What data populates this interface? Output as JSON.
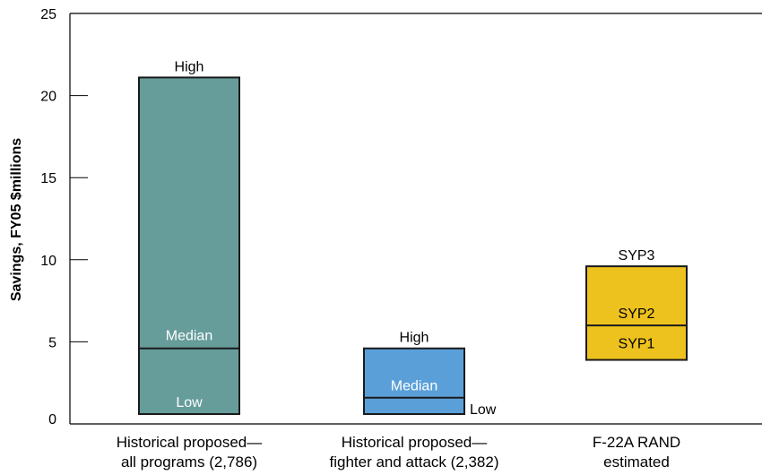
{
  "chart_data": {
    "type": "range_bar",
    "ylabel": "Savings, FY05 $millions",
    "ylim": [
      0,
      25
    ],
    "yticks": [
      0,
      5,
      10,
      15,
      20,
      25
    ],
    "grid": false,
    "categories": [
      [
        "Historical proposed—",
        "all programs (2,786)"
      ],
      [
        "Historical proposed—",
        "fighter and attack (2,382)"
      ],
      [
        "F-22A RAND",
        "estimated"
      ]
    ],
    "bars": [
      {
        "low": 0.6,
        "mid": 4.6,
        "high": 21.1,
        "color": "#669c9a",
        "labels": {
          "high": "High",
          "mid": "Median",
          "low": "Low"
        }
      },
      {
        "low": 0.6,
        "mid": 1.6,
        "high": 4.6,
        "color": "#5a9fd8",
        "labels": {
          "high": "High",
          "mid": "Median",
          "low": "Low"
        }
      },
      {
        "low": 3.9,
        "mid": 6.0,
        "high": 9.6,
        "color": "#eec21e",
        "labels": {
          "high": "SYP3",
          "mid": "SYP2",
          "low": "SYP1"
        }
      }
    ]
  }
}
